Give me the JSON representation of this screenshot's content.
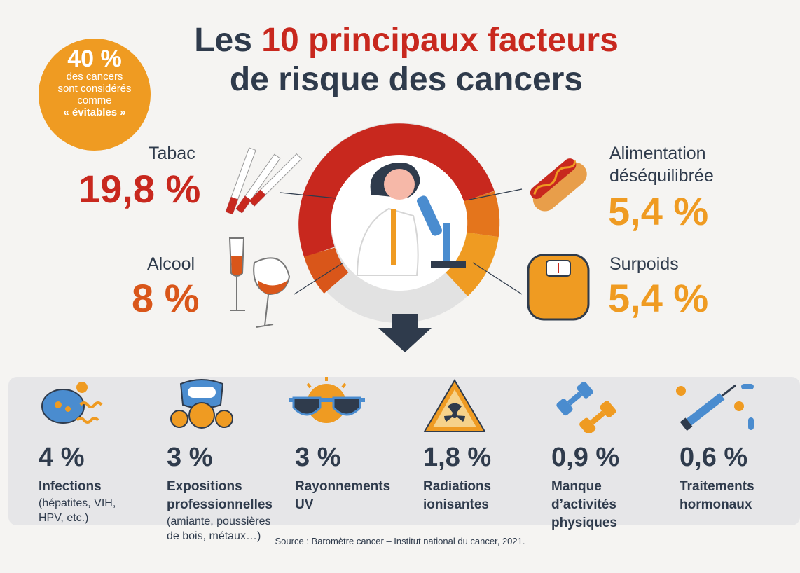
{
  "title": {
    "part1": "Les ",
    "accent": "10 principaux facteurs",
    "line2": "de risque des cancers"
  },
  "badge": {
    "pct": "40 %",
    "line1": "des cancers",
    "line2": "sont considérés",
    "line3": "comme",
    "line4": "« évitables »"
  },
  "main_factors": {
    "tabac": {
      "label": "Tabac",
      "value": "19,8 %"
    },
    "alcool": {
      "label": "Alcool",
      "value": "8 %"
    },
    "alimentation": {
      "label1": "Alimentation",
      "label2": "déséquilibrée",
      "value": "5,4 %"
    },
    "surpoids": {
      "label": "Surpoids",
      "value": "5,4 %"
    }
  },
  "items": [
    {
      "value": "4 %",
      "name": "Infections",
      "detail": "(hépatites, VIH,\nHPV, etc.)"
    },
    {
      "value": "3 %",
      "name": "Expositions\nprofessionnelles",
      "detail": "(amiante, poussières\nde bois, métaux…)"
    },
    {
      "value": "3 %",
      "name": "Rayonnements\nUV",
      "detail": ""
    },
    {
      "value": "1,8 %",
      "name": "Radiations\nionisantes",
      "detail": ""
    },
    {
      "value": "0,9 %",
      "name": "Manque\nd’activités\nphysiques",
      "detail": ""
    },
    {
      "value": "0,6 %",
      "name": "Traitements\nhormonaux",
      "detail": ""
    }
  ],
  "colors": {
    "red": "#c8281e",
    "dark_orange": "#d9561a",
    "orange": "#ef9b22",
    "navy": "#2f3b4c"
  },
  "icons": [
    "cigarettes-icon",
    "wine-glasses-icon",
    "hotdog-icon",
    "scale-icon",
    "scientist-microscope-icon",
    "arrow-down-icon",
    "bacteria-icon",
    "gas-mask-icon",
    "sun-sunglasses-icon",
    "radiation-icon",
    "dumbbells-icon",
    "syringe-pills-icon"
  ],
  "source": "Source : Baromètre cancer – Institut national du cancer, 2021."
}
